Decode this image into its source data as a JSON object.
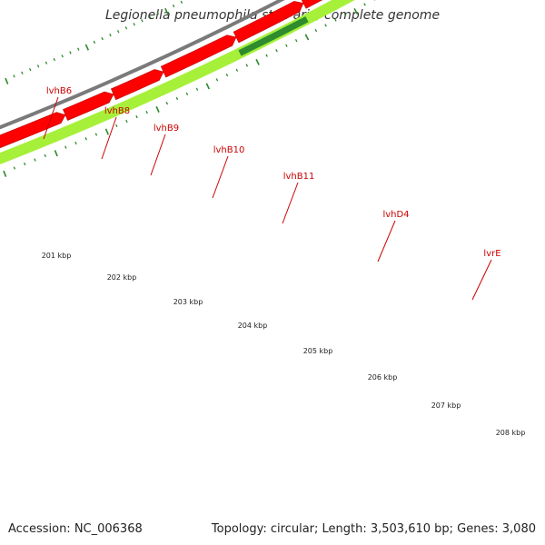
{
  "title": "Legionella pneumophila str. Paris, complete genome",
  "footer": {
    "accession": "Accession: NC_006368",
    "topology": "Topology: circular; Length: 3,503,610 bp; Genes: 3,080"
  },
  "colors": {
    "gene": "#ff0000",
    "highlight": "#a6f03a",
    "highlight_dark": "#2e8b2e",
    "backbone": "#7a7a7a",
    "tick": "#2a8a2a",
    "label": "#cc0000",
    "magenta": "#ff1493"
  },
  "gene_labels": [
    "lvhB6",
    "lvhB8",
    "lvhB9",
    "lvhB10",
    "lvhB11",
    "lvhD4",
    "lvrE"
  ],
  "tick_labels": [
    "201 kbp",
    "202 kbp",
    "203 kbp",
    "204 kbp",
    "205 kbp",
    "206 kbp",
    "207 kbp",
    "208 kbp"
  ]
}
